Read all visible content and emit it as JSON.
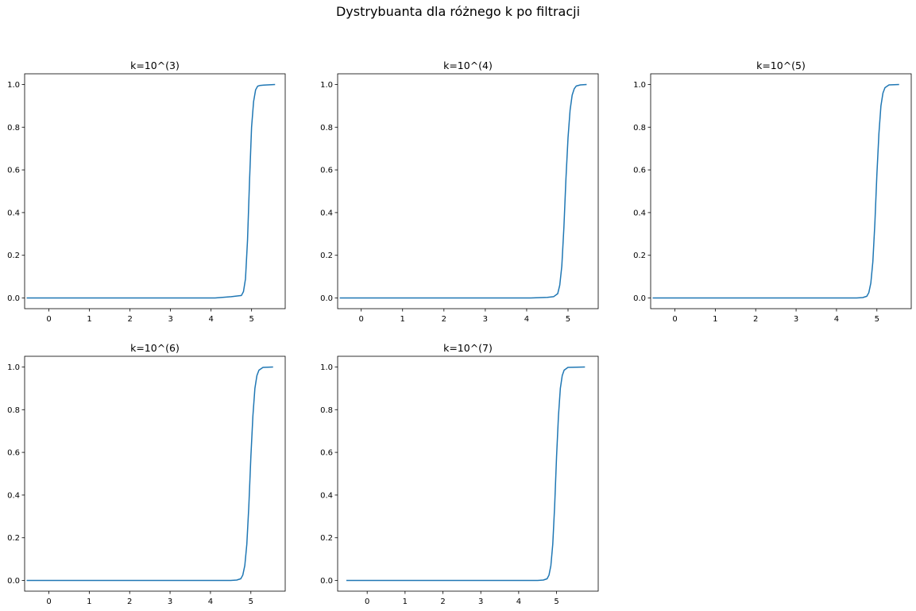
{
  "suptitle": "Dystrybuanta dla różnego k po filtracji",
  "line_color": "#1f77b4",
  "chart_data": [
    {
      "type": "line",
      "title": "k=10^(3)",
      "xlabel": "",
      "ylabel": "",
      "xlim": [
        -0.6,
        5.83
      ],
      "ylim": [
        -0.05,
        1.05
      ],
      "xticks": [
        0,
        1,
        2,
        3,
        4,
        5
      ],
      "yticks": [
        0.0,
        0.2,
        0.4,
        0.6,
        0.8,
        1.0
      ],
      "ytick_labels": [
        "0.0",
        "0.2",
        "0.4",
        "0.6",
        "0.8",
        "1.0"
      ],
      "grid": false,
      "series": [
        {
          "x": [
            -0.55,
            4.1,
            4.5,
            4.75,
            4.8,
            4.85,
            4.9,
            4.95,
            5.0,
            5.05,
            5.1,
            5.15,
            5.2,
            5.3,
            5.58
          ],
          "y": [
            0.0,
            0.0,
            0.006,
            0.012,
            0.03,
            0.09,
            0.27,
            0.55,
            0.8,
            0.92,
            0.975,
            0.992,
            0.995,
            0.997,
            1.0
          ]
        }
      ]
    },
    {
      "type": "line",
      "title": "k=10^(4)",
      "xlabel": "",
      "ylabel": "",
      "xlim": [
        -0.57,
        5.73
      ],
      "ylim": [
        -0.05,
        1.05
      ],
      "xticks": [
        0,
        1,
        2,
        3,
        4,
        5
      ],
      "yticks": [
        0.0,
        0.2,
        0.4,
        0.6,
        0.8,
        1.0
      ],
      "ytick_labels": [
        "0.0",
        "0.2",
        "0.4",
        "0.6",
        "0.8",
        "1.0"
      ],
      "grid": false,
      "series": [
        {
          "x": [
            -0.52,
            4.1,
            4.5,
            4.65,
            4.75,
            4.8,
            4.85,
            4.9,
            4.95,
            5.0,
            5.05,
            5.1,
            5.15,
            5.2,
            5.3,
            5.45
          ],
          "y": [
            0.0,
            0.0,
            0.003,
            0.006,
            0.02,
            0.06,
            0.15,
            0.33,
            0.56,
            0.75,
            0.88,
            0.95,
            0.98,
            0.993,
            0.998,
            1.0
          ]
        }
      ]
    },
    {
      "type": "line",
      "title": "k=10^(5)",
      "xlabel": "",
      "ylabel": "",
      "xlim": [
        -0.6,
        5.85
      ],
      "ylim": [
        -0.05,
        1.05
      ],
      "xticks": [
        0,
        1,
        2,
        3,
        4,
        5
      ],
      "yticks": [
        0.0,
        0.2,
        0.4,
        0.6,
        0.8,
        1.0
      ],
      "ytick_labels": [
        "0.0",
        "0.2",
        "0.4",
        "0.6",
        "0.8",
        "1.0"
      ],
      "grid": false,
      "series": [
        {
          "x": [
            -0.55,
            4.5,
            4.65,
            4.75,
            4.8,
            4.85,
            4.9,
            4.95,
            5.0,
            5.05,
            5.1,
            5.15,
            5.2,
            5.3,
            5.55
          ],
          "y": [
            0.0,
            0.0,
            0.002,
            0.008,
            0.025,
            0.07,
            0.17,
            0.35,
            0.58,
            0.77,
            0.9,
            0.96,
            0.985,
            0.998,
            1.0
          ]
        }
      ]
    },
    {
      "type": "line",
      "title": "k=10^(6)",
      "xlabel": "",
      "ylabel": "",
      "xlim": [
        -0.6,
        5.85
      ],
      "ylim": [
        -0.05,
        1.05
      ],
      "xticks": [
        0,
        1,
        2,
        3,
        4,
        5
      ],
      "yticks": [
        0.0,
        0.2,
        0.4,
        0.6,
        0.8,
        1.0
      ],
      "ytick_labels": [
        "0.0",
        "0.2",
        "0.4",
        "0.6",
        "0.8",
        "1.0"
      ],
      "grid": false,
      "series": [
        {
          "x": [
            -0.55,
            4.5,
            4.65,
            4.75,
            4.8,
            4.85,
            4.9,
            4.95,
            5.0,
            5.05,
            5.1,
            5.15,
            5.2,
            5.3,
            5.55
          ],
          "y": [
            0.0,
            0.0,
            0.002,
            0.008,
            0.025,
            0.07,
            0.17,
            0.35,
            0.58,
            0.77,
            0.9,
            0.96,
            0.985,
            0.998,
            1.0
          ]
        }
      ]
    },
    {
      "type": "line",
      "title": "k=10^(7)",
      "xlabel": "",
      "ylabel": "",
      "xlim": [
        -0.78,
        6.1
      ],
      "ylim": [
        -0.05,
        1.05
      ],
      "xticks": [
        0,
        1,
        2,
        3,
        4,
        5
      ],
      "yticks": [
        0.0,
        0.2,
        0.4,
        0.6,
        0.8,
        1.0
      ],
      "ytick_labels": [
        "0.0",
        "0.2",
        "0.4",
        "0.6",
        "0.8",
        "1.0"
      ],
      "grid": false,
      "series": [
        {
          "x": [
            -0.55,
            4.5,
            4.65,
            4.75,
            4.8,
            4.85,
            4.9,
            4.95,
            5.0,
            5.05,
            5.1,
            5.15,
            5.2,
            5.3,
            5.75
          ],
          "y": [
            0.0,
            0.0,
            0.002,
            0.008,
            0.025,
            0.07,
            0.17,
            0.35,
            0.58,
            0.77,
            0.9,
            0.96,
            0.985,
            0.998,
            1.0
          ]
        }
      ]
    }
  ]
}
